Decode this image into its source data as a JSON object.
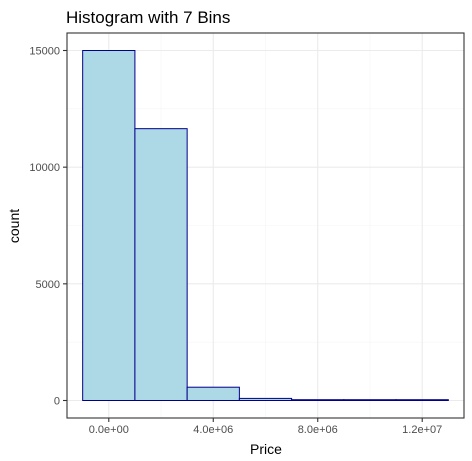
{
  "chart_data": {
    "type": "bar",
    "title": "Histogram with 7 Bins",
    "xlabel": "Price",
    "ylabel": "count",
    "bin_edges": [
      -1000000,
      1000000,
      3000000,
      5000000,
      7000000,
      9000000,
      11000000,
      13000000
    ],
    "values": [
      15000,
      11650,
      570,
      90,
      15,
      5,
      2
    ],
    "xlim": [
      -1600000,
      13600000
    ],
    "ylim": [
      -750,
      15750
    ],
    "x_ticks": [
      0,
      4000000,
      8000000,
      12000000
    ],
    "x_tick_labels": [
      "0.0e+00",
      "4.0e+06",
      "8.0e+06",
      "1.2e+07"
    ],
    "y_ticks": [
      0,
      5000,
      10000,
      15000
    ],
    "y_tick_labels": [
      "0",
      "5000",
      "10000",
      "15000"
    ],
    "grid": true,
    "legend": "none",
    "colors": {
      "bar_fill": "#add8e6",
      "bar_stroke": "#00008b",
      "panel_background": "#ffffff",
      "panel_border": "#333333",
      "grid_major": "#ebebeb",
      "grid_minor": "#f5f5f5",
      "tick_label": "#4d4d4d",
      "text": "#000000"
    }
  }
}
